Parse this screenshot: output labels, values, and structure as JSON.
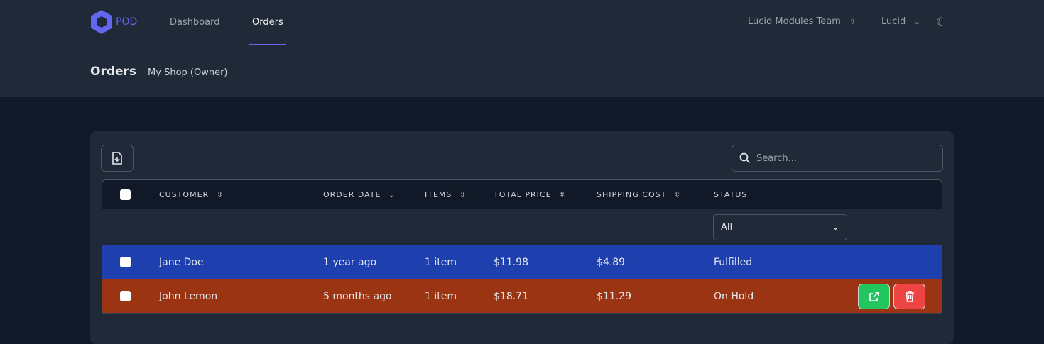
{
  "nav": {
    "brand": "POD",
    "tabs": [
      {
        "label": "Dashboard"
      },
      {
        "label": "Orders"
      }
    ],
    "team": "Lucid Modules Team",
    "user": "Lucid"
  },
  "page": {
    "title": "Orders",
    "subtitle": "My Shop (Owner)"
  },
  "search": {
    "placeholder": "Search..."
  },
  "table": {
    "headers": {
      "customer": "CUSTOMER",
      "order_date": "ORDER DATE",
      "items": "ITEMS",
      "total_price": "TOTAL PRICE",
      "shipping_cost": "SHIPPING COST",
      "status": "STATUS"
    },
    "status_filter": "All",
    "rows": [
      {
        "customer": "Jane Doe",
        "order_date": "1 year ago",
        "items": "1 item",
        "total_price": "$11.98",
        "shipping_cost": "$4.89",
        "status": "Fulfilled",
        "color": "#1e40af"
      },
      {
        "customer": "John Lemon",
        "order_date": "5 months ago",
        "items": "1 item",
        "total_price": "$18.71",
        "shipping_cost": "$11.29",
        "status": "On Hold",
        "color": "#9a3412"
      }
    ]
  },
  "colors": {
    "accent": "#6366f1",
    "edit": "#22c55e",
    "delete": "#ef4444"
  }
}
